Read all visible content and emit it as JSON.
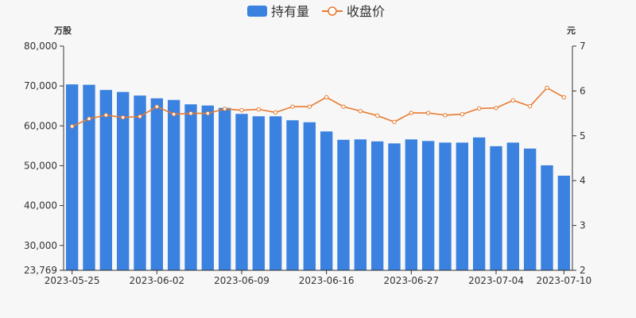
{
  "chart_data": {
    "type": "bar+line",
    "legend": {
      "position": "top-center",
      "items": [
        {
          "label": "持有量",
          "type": "bar",
          "color": "#3b82e0"
        },
        {
          "label": "收盘价",
          "type": "line",
          "color": "#e87a2f"
        }
      ]
    },
    "y_left": {
      "unit": "万股",
      "min": 23769,
      "max": 80000,
      "ticks": [
        "23,769",
        "30,000",
        "40,000",
        "50,000",
        "60,000",
        "70,000",
        "80,000"
      ],
      "tick_values": [
        23769,
        30000,
        40000,
        50000,
        60000,
        70000,
        80000
      ]
    },
    "y_right": {
      "unit": "元",
      "min": 2,
      "max": 7,
      "ticks": [
        "2",
        "3",
        "4",
        "5",
        "6",
        "7"
      ]
    },
    "x_tick_labels": [
      {
        "index": 0,
        "label": "2023-05-25"
      },
      {
        "index": 5,
        "label": "2023-06-02"
      },
      {
        "index": 10,
        "label": "2023-06-09"
      },
      {
        "index": 15,
        "label": "2023-06-16"
      },
      {
        "index": 20,
        "label": "2023-06-27"
      },
      {
        "index": 25,
        "label": "2023-07-04"
      },
      {
        "index": 29,
        "label": "2023-07-10"
      }
    ],
    "series": [
      {
        "name": "持有量",
        "type": "bar",
        "axis": "left",
        "color": "#3b82e0",
        "values": [
          70400,
          70300,
          69000,
          68500,
          67600,
          66900,
          66500,
          65400,
          65100,
          64500,
          63000,
          62400,
          62400,
          61400,
          60900,
          58600,
          56500,
          56600,
          56100,
          55600,
          56600,
          56200,
          55800,
          55800,
          57100,
          54900,
          55800,
          54300,
          50100,
          47500
        ]
      },
      {
        "name": "收盘价",
        "type": "line",
        "axis": "right",
        "color": "#e87a2f",
        "values": [
          5.21,
          5.38,
          5.46,
          5.41,
          5.43,
          5.65,
          5.48,
          5.5,
          5.5,
          5.6,
          5.57,
          5.59,
          5.52,
          5.65,
          5.65,
          5.86,
          5.65,
          5.55,
          5.45,
          5.31,
          5.51,
          5.51,
          5.46,
          5.48,
          5.61,
          5.62,
          5.79,
          5.66,
          6.07,
          5.86
        ]
      }
    ]
  }
}
